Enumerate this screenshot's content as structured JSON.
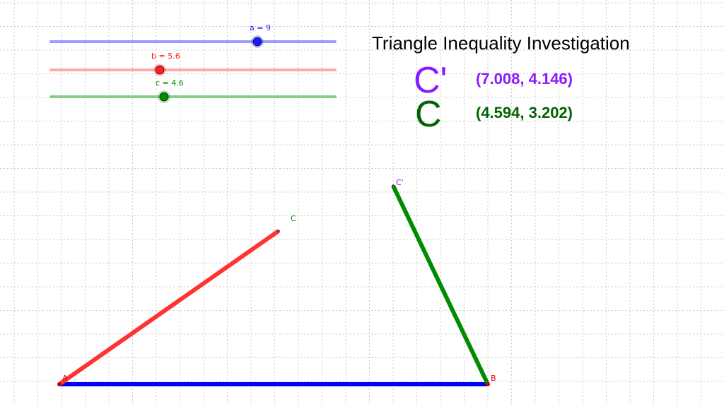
{
  "title": "Triangle Inequality Investigation",
  "sliders": [
    {
      "id": "a",
      "label": "a = 9",
      "value": 9,
      "min": 0,
      "max": 12,
      "color": "#1a1aff"
    },
    {
      "id": "b",
      "label": "b = 5.6",
      "value": 5.6,
      "min": 0,
      "max": 10,
      "color": "#ff2020"
    },
    {
      "id": "c",
      "label": "c = 4.6",
      "value": 4.6,
      "min": 0,
      "max": 10,
      "color": "#008c00"
    }
  ],
  "readouts": [
    {
      "label": "C'",
      "value": "(7.008, 4.146)",
      "color": "#8a1aff"
    },
    {
      "label": "C",
      "value": "(4.594, 3.202)",
      "color": "#006400"
    }
  ],
  "points": {
    "A": {
      "label": "A",
      "color": "#cc0000"
    },
    "B": {
      "label": "B",
      "color": "#cc0000"
    },
    "C": {
      "label": "C",
      "color": "#008c00"
    },
    "Cprime": {
      "label": "C'",
      "color": "#8a1aff"
    }
  },
  "segments": {
    "AB_color": "#0000ee",
    "AC_color": "#ff3333",
    "BCprime_color": "#008c00"
  }
}
